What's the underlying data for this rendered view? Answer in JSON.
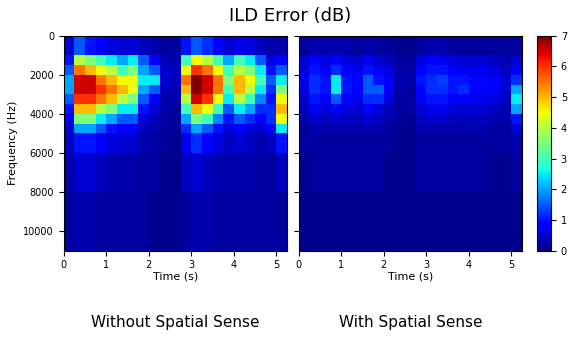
{
  "title": "ILD Error (dB)",
  "chart_data": [
    {
      "type": "heatmap",
      "subtitle": "Without Spatial Sense",
      "x_label": "Time (s)",
      "y_label": "Frequency (Hz)",
      "xlim": [
        0,
        5.25
      ],
      "xticks": [
        0,
        1,
        2,
        3,
        4,
        5
      ],
      "ylim": [
        11000,
        0
      ],
      "yticks": [
        0,
        2000,
        4000,
        6000,
        8000,
        10000
      ],
      "tick_labels": true,
      "x_edges": [
        0,
        0.25,
        0.5,
        0.75,
        1,
        1.25,
        1.5,
        1.75,
        2,
        2.25,
        2.5,
        2.75,
        3,
        3.25,
        3.5,
        3.75,
        4,
        4.25,
        4.5,
        4.75,
        5,
        5.25
      ],
      "y_edges": [
        0,
        1000,
        1500,
        2000,
        2500,
        3000,
        3500,
        4000,
        4500,
        5000,
        6000,
        8000,
        11000
      ],
      "cells_by_time": [
        [
          0.5,
          1,
          1.5,
          2,
          2,
          1.5,
          1,
          0.8,
          0.5,
          0.4,
          0.3,
          0.2
        ],
        [
          1.5,
          4,
          5.5,
          6.5,
          6.5,
          6,
          5,
          3.5,
          2,
          1,
          0.5,
          0.3
        ],
        [
          1,
          3.5,
          5,
          6.5,
          6.5,
          6,
          5,
          3.5,
          2,
          1,
          0.5,
          0.3
        ],
        [
          0.8,
          3,
          4.5,
          5.5,
          6,
          5.5,
          4,
          2.5,
          1.5,
          0.8,
          0.4,
          0.2
        ],
        [
          0.6,
          2.5,
          4,
          5,
          5.5,
          5,
          3.5,
          2,
          1,
          0.6,
          0.3,
          0.2
        ],
        [
          0.5,
          2,
          3,
          4.5,
          5,
          4,
          2.5,
          1.5,
          0.8,
          0.5,
          0.3,
          0.2
        ],
        [
          0.6,
          2.5,
          3.5,
          4.5,
          4.5,
          3.5,
          2.5,
          1.5,
          0.8,
          0.5,
          0.3,
          0.2
        ],
        [
          0.4,
          1.5,
          2,
          2.5,
          2,
          1.5,
          1,
          0.6,
          0.4,
          0.3,
          0.2,
          0.2
        ],
        [
          0.3,
          0.8,
          1.5,
          2.5,
          1.5,
          0.8,
          0.5,
          0.4,
          0.3,
          0.2,
          0.2,
          0.1
        ],
        [
          0.2,
          0.4,
          0.5,
          0.5,
          0.4,
          0.3,
          0.3,
          0.2,
          0.2,
          0.2,
          0.1,
          0.1
        ],
        [
          0.2,
          0.3,
          0.4,
          0.4,
          0.3,
          0.3,
          0.2,
          0.2,
          0.2,
          0.1,
          0.1,
          0.1
        ],
        [
          1,
          3,
          4.5,
          5.5,
          5,
          4,
          3,
          2,
          1.2,
          0.7,
          0.4,
          0.2
        ],
        [
          1.5,
          4.5,
          6,
          7,
          7,
          6.5,
          5,
          3.5,
          2,
          1.2,
          0.5,
          0.3
        ],
        [
          1.2,
          4,
          5.5,
          6.5,
          6.5,
          6,
          4.5,
          3,
          1.5,
          0.8,
          0.4,
          0.3
        ],
        [
          0.8,
          3,
          4.5,
          5.5,
          5.5,
          4.5,
          3,
          1.8,
          1,
          0.6,
          0.3,
          0.2
        ],
        [
          0.5,
          2,
          3,
          3.5,
          3,
          2.5,
          1.5,
          1,
          0.6,
          0.4,
          0.3,
          0.2
        ],
        [
          0.7,
          3,
          4,
          5,
          5,
          4,
          2.5,
          1.5,
          0.8,
          0.5,
          0.3,
          0.2
        ],
        [
          0.6,
          2.5,
          3.5,
          4.5,
          4,
          3,
          2,
          1.2,
          0.6,
          0.4,
          0.3,
          0.2
        ],
        [
          0.4,
          1.5,
          2.5,
          3,
          2.5,
          1.8,
          1.2,
          0.8,
          0.5,
          0.3,
          0.2,
          0.2
        ],
        [
          0.3,
          0.6,
          1,
          1.5,
          1.2,
          1,
          1.2,
          1.2,
          0.8,
          0.4,
          0.2,
          0.2
        ],
        [
          0.3,
          0.8,
          1.5,
          2.5,
          3.5,
          4.5,
          5,
          4.5,
          2.5,
          1,
          0.4,
          0.2
        ]
      ]
    },
    {
      "type": "heatmap",
      "subtitle": "With Spatial Sense",
      "x_label": "Time (s)",
      "xlim": [
        0,
        5.25
      ],
      "xticks": [
        0,
        1,
        2,
        3,
        4,
        5
      ],
      "ylim": [
        11000,
        0
      ],
      "yticks": [
        0,
        2000,
        4000,
        6000,
        8000,
        10000
      ],
      "tick_labels": "x",
      "x_edges": [
        0,
        0.25,
        0.5,
        0.75,
        1,
        1.25,
        1.5,
        1.75,
        2,
        2.25,
        2.5,
        2.75,
        3,
        3.25,
        3.5,
        3.75,
        4,
        4.25,
        4.5,
        4.75,
        5,
        5.25
      ],
      "y_edges": [
        0,
        1000,
        1500,
        2000,
        2500,
        3000,
        3500,
        4000,
        4500,
        5000,
        6000,
        8000,
        11000
      ],
      "cells_by_time": [
        [
          0.2,
          0.5,
          0.6,
          0.7,
          0.6,
          0.5,
          0.4,
          0.3,
          0.2,
          0.2,
          0.1,
          0.1
        ],
        [
          0.3,
          0.8,
          1,
          1.2,
          1.2,
          1,
          0.7,
          0.5,
          0.3,
          0.2,
          0.2,
          0.1
        ],
        [
          0.3,
          0.6,
          0.8,
          1,
          1,
          0.8,
          0.6,
          0.4,
          0.3,
          0.2,
          0.2,
          0.1
        ],
        [
          0.3,
          0.8,
          1.2,
          2.5,
          2.5,
          1.5,
          0.8,
          0.5,
          0.3,
          0.2,
          0.2,
          0.1
        ],
        [
          0.3,
          0.6,
          0.8,
          1,
          1,
          0.8,
          0.6,
          0.4,
          0.3,
          0.2,
          0.2,
          0.1
        ],
        [
          0.2,
          0.5,
          0.7,
          0.9,
          0.9,
          0.7,
          0.5,
          0.4,
          0.3,
          0.2,
          0.2,
          0.1
        ],
        [
          0.3,
          0.7,
          1,
          1.5,
          1.5,
          1.2,
          0.8,
          0.5,
          0.3,
          0.2,
          0.2,
          0.1
        ],
        [
          0.2,
          0.5,
          0.7,
          1,
          1.5,
          1.2,
          0.6,
          0.4,
          0.3,
          0.2,
          0.2,
          0.1
        ],
        [
          0.2,
          0.4,
          0.6,
          0.8,
          0.8,
          0.6,
          0.4,
          0.3,
          0.2,
          0.2,
          0.1,
          0.1
        ],
        [
          0.1,
          0.2,
          0.3,
          0.3,
          0.3,
          0.2,
          0.2,
          0.2,
          0.1,
          0.1,
          0.1,
          0.1
        ],
        [
          0.1,
          0.2,
          0.2,
          0.3,
          0.2,
          0.2,
          0.2,
          0.1,
          0.1,
          0.1,
          0.1,
          0.1
        ],
        [
          0.2,
          0.6,
          0.8,
          1,
          0.9,
          0.7,
          0.5,
          0.4,
          0.3,
          0.2,
          0.2,
          0.1
        ],
        [
          0.3,
          0.8,
          1,
          1.2,
          1.2,
          1,
          0.7,
          0.5,
          0.3,
          0.2,
          0.2,
          0.1
        ],
        [
          0.3,
          0.7,
          1,
          1.3,
          1.2,
          1,
          0.7,
          0.5,
          0.3,
          0.2,
          0.2,
          0.1
        ],
        [
          0.2,
          0.6,
          0.8,
          1,
          1,
          0.8,
          0.6,
          0.4,
          0.3,
          0.2,
          0.2,
          0.1
        ],
        [
          0.2,
          0.5,
          0.7,
          1,
          1.2,
          0.8,
          0.5,
          0.4,
          0.3,
          0.2,
          0.2,
          0.1
        ],
        [
          0.2,
          0.5,
          0.7,
          0.9,
          0.9,
          0.7,
          0.5,
          0.4,
          0.3,
          0.2,
          0.2,
          0.1
        ],
        [
          0.2,
          0.5,
          0.7,
          0.9,
          0.9,
          0.7,
          0.5,
          0.4,
          0.3,
          0.2,
          0.2,
          0.1
        ],
        [
          0.2,
          0.4,
          0.6,
          0.8,
          0.8,
          0.6,
          0.4,
          0.3,
          0.2,
          0.2,
          0.1,
          0.1
        ],
        [
          0.2,
          0.3,
          0.4,
          0.5,
          0.5,
          0.4,
          0.3,
          0.3,
          0.2,
          0.2,
          0.1,
          0.1
        ],
        [
          0.2,
          0.5,
          0.8,
          1.2,
          2,
          2.5,
          2,
          1,
          0.5,
          0.3,
          0.2,
          0.1
        ]
      ]
    }
  ],
  "colorbar": {
    "lim": [
      0,
      7
    ],
    "ticks": [
      0,
      1,
      2,
      3,
      4,
      5,
      6,
      7
    ]
  }
}
